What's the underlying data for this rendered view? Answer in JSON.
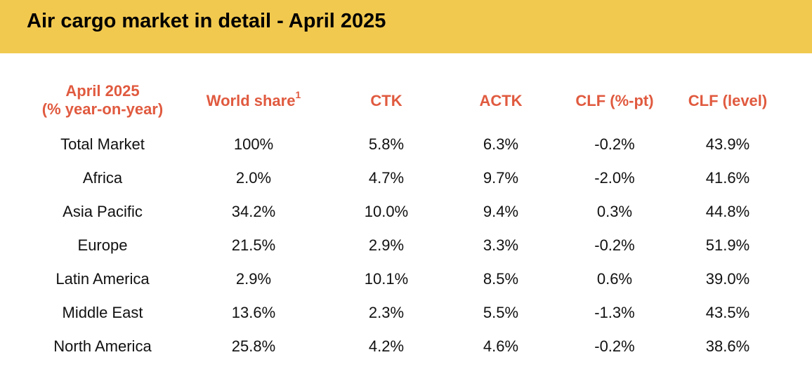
{
  "page": {
    "title": "Air cargo market in detail - April 2025"
  },
  "colors": {
    "header_background": "#f2c94f",
    "header_text": "#e05a3f"
  },
  "table": {
    "headers": [
      {
        "line1": "April 2025",
        "line2": "(% year-on-year)",
        "footnote": ""
      },
      {
        "line1": "World share",
        "line2": "",
        "footnote": "1"
      },
      {
        "line1": "CTK",
        "line2": "",
        "footnote": ""
      },
      {
        "line1": "ACTK",
        "line2": "",
        "footnote": ""
      },
      {
        "line1": "CLF (%-pt)",
        "line2": "",
        "footnote": ""
      },
      {
        "line1": "CLF (level)",
        "line2": "",
        "footnote": ""
      }
    ],
    "rows": [
      [
        "Total Market",
        "100%",
        "5.8%",
        "6.3%",
        "-0.2%",
        "43.9%"
      ],
      [
        "Africa",
        "2.0%",
        "4.7%",
        "9.7%",
        "-2.0%",
        "41.6%"
      ],
      [
        "Asia Pacific",
        "34.2%",
        "10.0%",
        "9.4%",
        "0.3%",
        "44.8%"
      ],
      [
        "Europe",
        "21.5%",
        "2.9%",
        "3.3%",
        "-0.2%",
        "51.9%"
      ],
      [
        "Latin America",
        "2.9%",
        "10.1%",
        "8.5%",
        "0.6%",
        "39.0%"
      ],
      [
        "Middle East",
        "13.6%",
        "2.3%",
        "5.5%",
        "-1.3%",
        "43.5%"
      ],
      [
        "North America",
        "25.8%",
        "4.2%",
        "4.6%",
        "-0.2%",
        "38.6%"
      ]
    ]
  }
}
